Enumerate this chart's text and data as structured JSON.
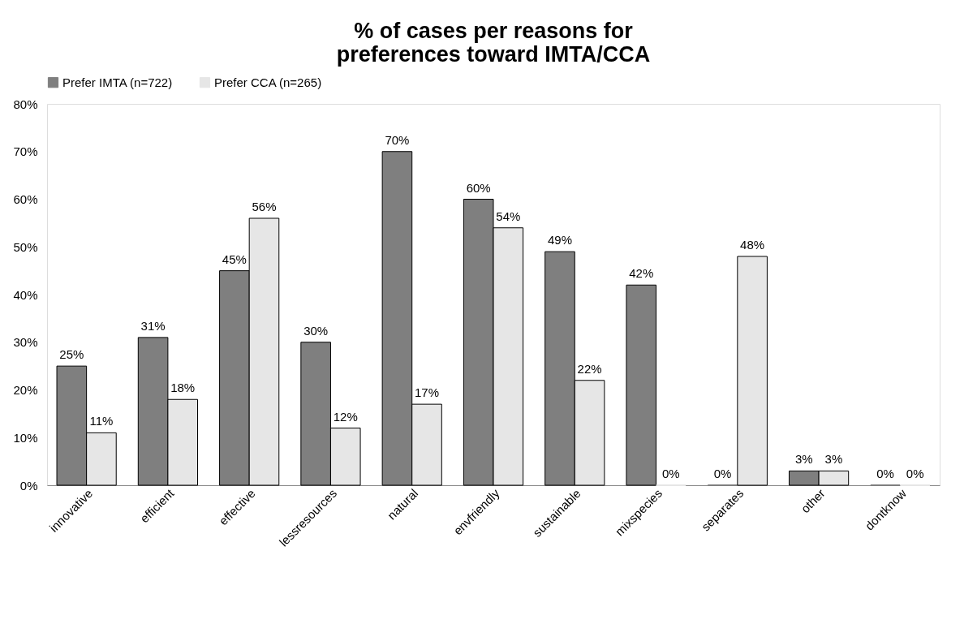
{
  "chart_data": {
    "type": "bar",
    "title": [
      "% of cases per reasons for",
      "preferences toward IMTA/CCA"
    ],
    "categories": [
      "innovative",
      "efficient",
      "effective",
      "lessresources",
      "natural",
      "envfriendly",
      "sustainable",
      "mixspecies",
      "separates",
      "other",
      "dontknow"
    ],
    "series": [
      {
        "name": "Prefer IMTA (n=722)",
        "color": "#7f7f7f",
        "values": [
          25,
          31,
          45,
          30,
          70,
          60,
          49,
          42,
          0,
          3,
          0
        ],
        "value_labels": [
          "25%",
          "31%",
          "45%",
          "30%",
          "70%",
          "60%",
          "49%",
          "42%",
          "0%",
          "3%",
          "0%"
        ]
      },
      {
        "name": "Prefer CCA (n=265)",
        "color": "#e6e6e6",
        "values": [
          11,
          18,
          56,
          12,
          17,
          54,
          22,
          0,
          48,
          3,
          0
        ],
        "value_labels": [
          "11%",
          "18%",
          "56%",
          "12%",
          "17%",
          "54%",
          "22%",
          "0%",
          "48%",
          "3%",
          "0%"
        ]
      }
    ],
    "ylim": [
      0,
      80
    ],
    "yticks": [
      {
        "value": 0,
        "label": "0%"
      },
      {
        "value": 10,
        "label": "10%"
      },
      {
        "value": 20,
        "label": "20%"
      },
      {
        "value": 30,
        "label": "30%"
      },
      {
        "value": 40,
        "label": "40%"
      },
      {
        "value": 50,
        "label": "50%"
      },
      {
        "value": 60,
        "label": "60%"
      },
      {
        "value": 70,
        "label": "70%"
      },
      {
        "value": 80,
        "label": "80%"
      }
    ],
    "legend": "top",
    "grid": false
  }
}
